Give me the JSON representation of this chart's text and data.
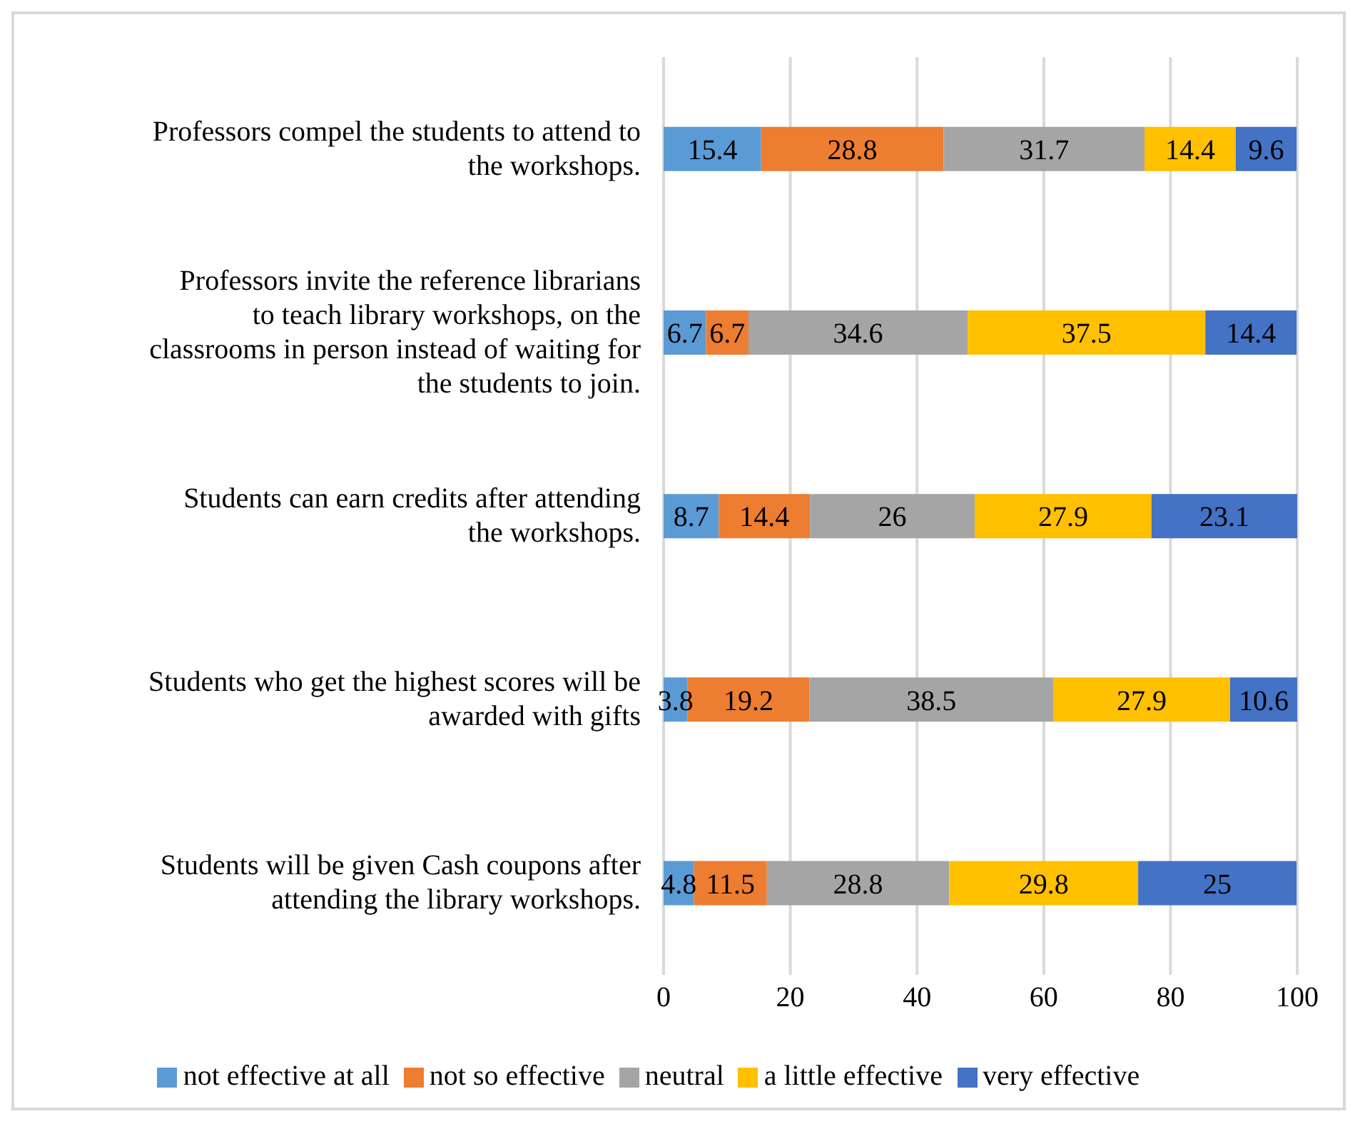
{
  "chart_data": {
    "type": "bar",
    "orientation": "horizontal",
    "stacked": true,
    "categories": [
      "Professors compel the students to attend to the workshops.",
      "Professors invite the reference librarians to teach library workshops, on the classrooms in person instead of waiting for the students to join.",
      "Students can earn credits after attending the workshops.",
      "Students who get the highest scores will be awarded with gifts",
      "Students will be given Cash coupons after attending the library workshops."
    ],
    "series": [
      {
        "name": "not effective at all",
        "color": "#5b9bd5",
        "values": [
          15.4,
          6.7,
          8.7,
          3.8,
          4.8
        ]
      },
      {
        "name": "not so effective",
        "color": "#ed7d31",
        "values": [
          28.8,
          6.7,
          14.4,
          19.2,
          11.5
        ]
      },
      {
        "name": "neutral",
        "color": "#a5a5a5",
        "values": [
          31.7,
          34.6,
          26,
          38.5,
          28.8
        ]
      },
      {
        "name": "a little effective",
        "color": "#ffc000",
        "values": [
          14.4,
          37.5,
          27.9,
          27.9,
          29.8
        ]
      },
      {
        "name": "very effective",
        "color": "#4472c4",
        "values": [
          9.6,
          14.4,
          23.1,
          10.6,
          25
        ]
      }
    ],
    "xlim": [
      0,
      100
    ],
    "xticks": [
      0,
      20,
      40,
      60,
      80,
      100
    ],
    "grid": "x",
    "legend": "bottom",
    "data_labels": true
  }
}
